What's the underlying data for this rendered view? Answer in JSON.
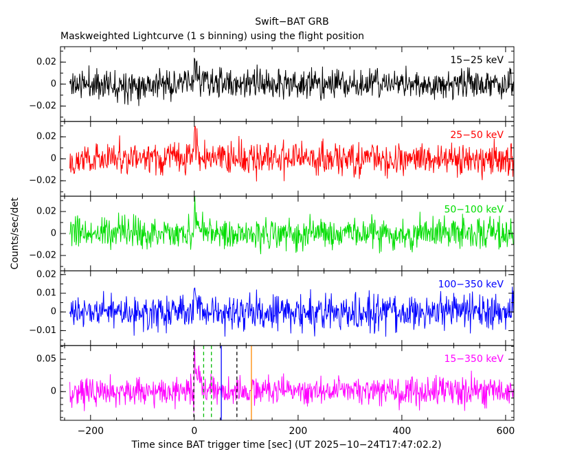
{
  "header": {
    "title": "Swift−BAT GRB",
    "subtitle": "Maskweighted Lightcurve (1 s binning) using the flight position"
  },
  "axes": {
    "ylabel": "Counts/sec/det",
    "xlabel": "Time since BAT trigger time [sec] (UT 2025−10−24T17:47:02.2)"
  },
  "chart_data": {
    "type": "line",
    "title": "Swift−BAT GRB",
    "subtitle": "Maskweighted Lightcurve (1 s binning) using the flight position",
    "xlabel": "Time since BAT trigger time [sec] (UT 2025−10−24T17:47:02.2)",
    "ylabel": "Counts/sec/det",
    "x_axis_range": [
      -258,
      616
    ],
    "data_t_range": [
      -240,
      615
    ],
    "bin_seconds": 1,
    "x_tick_vals": [
      -200,
      0,
      200,
      400,
      600
    ],
    "x_tick_labels": [
      "−200",
      "0",
      "200",
      "400",
      "600"
    ],
    "x_minor_step": 50,
    "grid": false,
    "legend_position": "inside-top-right-per-panel",
    "panels": [
      {
        "label": "15−25 keV",
        "color": "#000000",
        "ylim": [
          -0.034,
          0.034
        ],
        "ytick_vals": [
          0.02,
          0,
          -0.02
        ],
        "ytick_labels": [
          "0.02",
          "0",
          "−0.02"
        ],
        "y_minor_step": 0.01,
        "noise_sigma": 0.0068,
        "burst_time": 0,
        "burst_amp": 0.013,
        "burst_decay_sec": 15,
        "seed": 11
      },
      {
        "label": "25−50 keV",
        "color": "#ff0000",
        "ylim": [
          -0.034,
          0.034
        ],
        "ytick_vals": [
          0.02,
          0,
          -0.02
        ],
        "ytick_labels": [
          "0.02",
          "0",
          "−0.02"
        ],
        "y_minor_step": 0.01,
        "noise_sigma": 0.0072,
        "burst_time": 0,
        "burst_amp": 0.014,
        "burst_decay_sec": 15,
        "seed": 22
      },
      {
        "label": "50−100 keV",
        "color": "#00dd00",
        "ylim": [
          -0.034,
          0.034
        ],
        "ytick_vals": [
          0.02,
          0,
          -0.02
        ],
        "ytick_labels": [
          "0.02",
          "0",
          "−0.02"
        ],
        "y_minor_step": 0.01,
        "noise_sigma": 0.007,
        "burst_time": 0,
        "burst_amp": 0.013,
        "burst_decay_sec": 12,
        "seed": 33
      },
      {
        "label": "100−350 keV",
        "color": "#0000ff",
        "ylim": [
          -0.018,
          0.022
        ],
        "ytick_vals": [
          0.02,
          0.01,
          0,
          -0.01
        ],
        "ytick_labels": [
          "0.02",
          "0.01",
          "0",
          "−0.01"
        ],
        "y_minor_step": 0.005,
        "noise_sigma": 0.0046,
        "burst_time": 0,
        "burst_amp": 0.006,
        "burst_decay_sec": 12,
        "seed": 44
      },
      {
        "label": "15−350 keV",
        "color": "#ff00ff",
        "ylim": [
          -0.0445,
          0.0712
        ],
        "ytick_vals": [
          0.05,
          0
        ],
        "ytick_labels": [
          "0.05",
          "0"
        ],
        "y_minor_step": 0.01,
        "noise_sigma": 0.011,
        "burst_time": 0,
        "burst_amp": 0.032,
        "burst_decay_sec": 15,
        "seed": 55
      }
    ],
    "trigger_markers_panel": 4,
    "trigger_markers": [
      {
        "t": -1,
        "color": "#000000",
        "style": "dashed"
      },
      {
        "t": 18,
        "color": "#00bb00",
        "style": "dashed"
      },
      {
        "t": 33,
        "color": "#00bb00",
        "style": "dashed"
      },
      {
        "t": 52,
        "color": "#0000ff",
        "style": "solid"
      },
      {
        "t": 82,
        "color": "#000000",
        "style": "dashed"
      },
      {
        "t": 110,
        "color": "#ff8800",
        "style": "solid"
      }
    ]
  }
}
